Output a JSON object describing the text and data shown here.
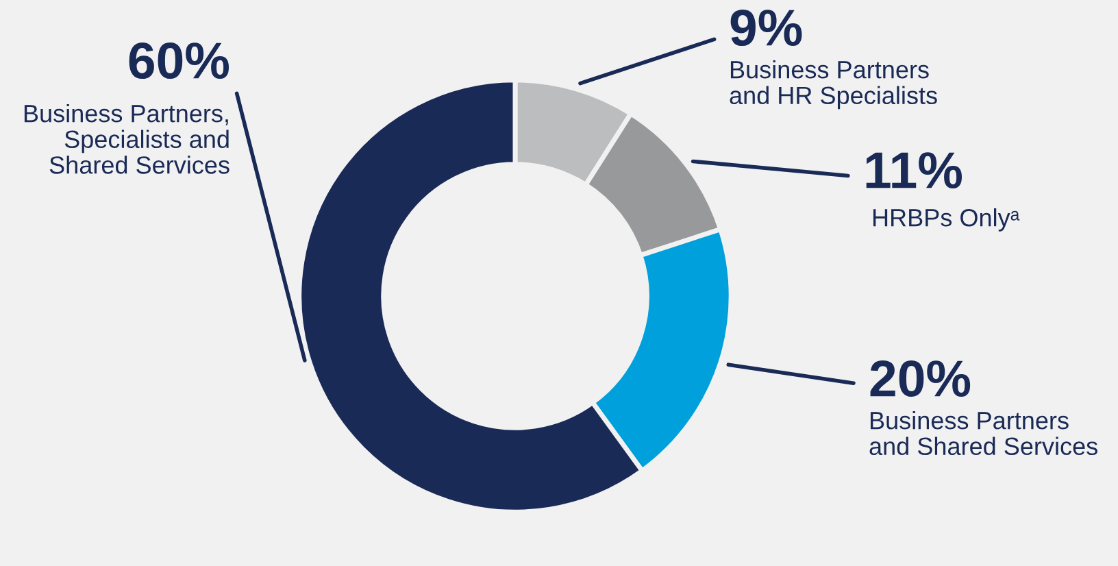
{
  "chart_data": {
    "type": "donut",
    "categories": [
      "Business Partners\nand HR Specialists",
      "HRBPs Onlyᵃ",
      "Business Partners\nand Shared Services",
      "Business Partners,\nSpecialists and\nShared Services"
    ],
    "values": [
      9,
      11,
      20,
      60
    ],
    "value_labels": [
      "9%",
      "11%",
      "20%",
      "60%"
    ],
    "colors": [
      "#bcbdbf",
      "#98999b",
      "#00a0dc",
      "#1a2a56"
    ],
    "legend": false
  }
}
